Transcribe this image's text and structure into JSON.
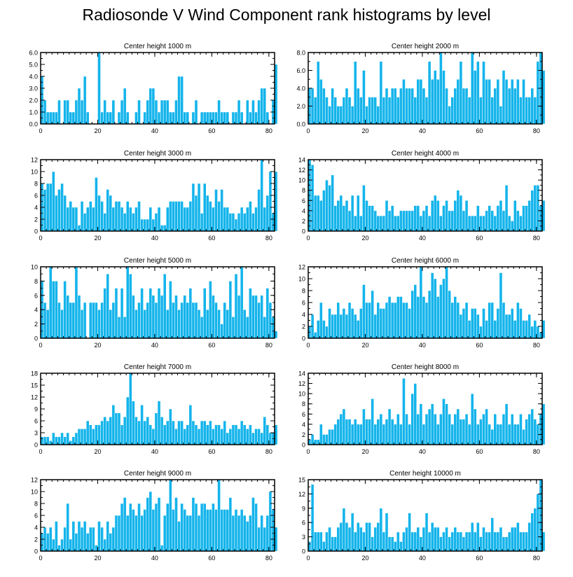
{
  "title": "Radiosonde V Wind Component rank histograms by level",
  "colors": {
    "bar": "#14b4eb",
    "bar_edge": "#ffffff",
    "axis": "#000000"
  },
  "chart_data": [
    {
      "type": "bar",
      "title": "Center height 1000 m",
      "xlim": [
        0,
        82
      ],
      "ylim": [
        0,
        6
      ],
      "xticks": [
        0,
        20,
        40,
        60,
        80
      ],
      "yticks": [
        0,
        1,
        2,
        3,
        4,
        5,
        6
      ],
      "ytick_labels": [
        "0.0",
        "1.0",
        "2.0",
        "3.0",
        "4.0",
        "5.0",
        "6.0"
      ],
      "values": [
        4,
        2,
        1,
        1,
        1,
        1,
        2,
        0,
        2,
        2,
        1,
        1,
        2,
        3,
        2,
        4,
        1,
        0,
        0,
        0,
        6,
        1,
        2,
        1,
        1,
        2,
        0,
        1,
        2,
        3,
        1,
        0,
        0,
        1,
        2,
        0,
        1,
        2,
        3,
        3,
        2,
        1,
        2,
        2,
        2,
        1,
        1,
        2,
        4,
        4,
        1,
        1,
        0,
        1,
        2,
        0,
        1,
        1,
        1,
        1,
        1,
        1,
        2,
        1,
        1,
        1,
        0,
        1,
        1,
        2,
        1,
        0,
        2,
        1,
        2,
        1,
        2,
        3,
        3,
        1,
        0,
        2,
        5
      ]
    },
    {
      "type": "bar",
      "title": "Center height 2000 m",
      "xlim": [
        0,
        82
      ],
      "ylim": [
        0,
        8
      ],
      "xticks": [
        0,
        20,
        40,
        60,
        80
      ],
      "yticks": [
        0,
        2,
        4,
        6,
        8
      ],
      "ytick_labels": [
        "0.0",
        "2.0",
        "4.0",
        "6.0",
        "8.0"
      ],
      "values": [
        4,
        4,
        3,
        7,
        5,
        4,
        3,
        2,
        4,
        3,
        2,
        2,
        3,
        4,
        3,
        2,
        7,
        4,
        3,
        6,
        2,
        3,
        3,
        3,
        2,
        7,
        3,
        4,
        3,
        4,
        4,
        3,
        4,
        5,
        4,
        4,
        4,
        3,
        5,
        5,
        4,
        3,
        7,
        5,
        6,
        5,
        8,
        6,
        4,
        2,
        3,
        4,
        5,
        7,
        4,
        4,
        3,
        8,
        6,
        7,
        3,
        7,
        5,
        5,
        3,
        4,
        5,
        2,
        6,
        5,
        4,
        5,
        4,
        5,
        3,
        5,
        3,
        3,
        4,
        3,
        7,
        8,
        6
      ]
    },
    {
      "type": "bar",
      "title": "Center height 3000 m",
      "xlim": [
        0,
        82
      ],
      "ylim": [
        0,
        12
      ],
      "xticks": [
        0,
        20,
        40,
        60,
        80
      ],
      "yticks": [
        0,
        2,
        4,
        6,
        8,
        10,
        12
      ],
      "ytick_labels": [
        "0",
        "2",
        "4",
        "6",
        "8",
        "10",
        "12"
      ],
      "values": [
        8,
        7,
        8,
        8,
        10,
        6,
        7,
        8,
        6,
        4,
        5,
        4,
        4,
        1,
        5,
        3,
        4,
        5,
        4,
        9,
        6,
        5,
        3,
        7,
        6,
        4,
        5,
        5,
        4,
        3,
        5,
        4,
        3,
        4,
        5,
        2,
        2,
        2,
        4,
        2,
        3,
        4,
        1,
        1,
        4,
        5,
        5,
        5,
        5,
        5,
        4,
        4,
        5,
        8,
        6,
        8,
        3,
        8,
        6,
        5,
        4,
        7,
        5,
        7,
        4,
        4,
        3,
        3,
        2,
        3,
        4,
        3,
        4,
        5,
        3,
        4,
        7,
        12,
        4,
        6,
        10,
        3,
        10
      ]
    },
    {
      "type": "bar",
      "title": "Center height 4000 m",
      "xlim": [
        0,
        82
      ],
      "ylim": [
        0,
        14
      ],
      "xticks": [
        0,
        20,
        40,
        60,
        80
      ],
      "yticks": [
        0,
        2,
        4,
        6,
        8,
        10,
        12,
        14
      ],
      "ytick_labels": [
        "0",
        "2",
        "4",
        "6",
        "8",
        "10",
        "12",
        "14"
      ],
      "values": [
        14,
        13,
        7,
        7,
        6,
        8,
        10,
        9,
        11,
        5,
        6,
        7,
        5,
        6,
        4,
        7,
        3,
        7,
        3,
        9,
        6,
        5,
        5,
        4,
        3,
        3,
        3,
        6,
        4,
        5,
        3,
        3,
        4,
        4,
        4,
        4,
        4,
        5,
        5,
        3,
        4,
        5,
        3,
        6,
        7,
        6,
        3,
        5,
        6,
        4,
        4,
        6,
        8,
        7,
        4,
        6,
        3,
        3,
        3,
        5,
        3,
        3,
        4,
        5,
        4,
        3,
        5,
        6,
        4,
        9,
        3,
        2,
        6,
        4,
        3,
        5,
        5,
        6,
        8,
        9,
        9,
        5,
        6
      ]
    },
    {
      "type": "bar",
      "title": "Center height 5000 m",
      "xlim": [
        0,
        82
      ],
      "ylim": [
        0,
        10
      ],
      "xticks": [
        0,
        20,
        40,
        60,
        80
      ],
      "yticks": [
        0,
        2,
        4,
        6,
        8,
        10
      ],
      "ytick_labels": [
        "0",
        "2",
        "4",
        "6",
        "8",
        "10"
      ],
      "values": [
        8,
        5,
        4,
        10,
        8,
        8,
        5,
        4,
        8,
        6,
        5,
        5,
        10,
        6,
        4,
        5,
        0,
        5,
        5,
        5,
        4,
        5,
        7,
        9,
        4,
        5,
        7,
        3,
        7,
        3,
        10,
        9,
        6,
        4,
        5,
        7,
        4,
        5,
        7,
        6,
        5,
        7,
        6,
        9,
        4,
        8,
        5,
        6,
        4,
        5,
        6,
        5,
        7,
        5,
        5,
        4,
        3,
        7,
        4,
        8,
        6,
        5,
        4,
        2,
        5,
        4,
        8,
        3,
        9,
        6,
        10,
        4,
        3,
        7,
        6,
        6,
        5,
        6,
        3,
        7,
        5,
        3,
        1
      ]
    },
    {
      "type": "bar",
      "title": "Center height 6000 m",
      "xlim": [
        0,
        82
      ],
      "ylim": [
        0,
        12
      ],
      "xticks": [
        0,
        20,
        40,
        60,
        80
      ],
      "yticks": [
        0,
        2,
        4,
        6,
        8,
        10,
        12
      ],
      "ytick_labels": [
        "0",
        "2",
        "4",
        "6",
        "8",
        "10",
        "12"
      ],
      "values": [
        2,
        4,
        1,
        3,
        6,
        3,
        2,
        5,
        4,
        4,
        6,
        4,
        5,
        4,
        6,
        5,
        4,
        3,
        5,
        9,
        6,
        6,
        8,
        4,
        6,
        5,
        5,
        6,
        7,
        6,
        6,
        7,
        7,
        6,
        6,
        5,
        8,
        9,
        7,
        12,
        7,
        6,
        8,
        11,
        10,
        7,
        9,
        10,
        12,
        8,
        6,
        7,
        6,
        4,
        5,
        6,
        3,
        5,
        5,
        4,
        2,
        5,
        3,
        6,
        6,
        3,
        5,
        11,
        6,
        4,
        4,
        5,
        3,
        6,
        5,
        3,
        3,
        4,
        2,
        3,
        2,
        1,
        3
      ]
    },
    {
      "type": "bar",
      "title": "Center height 7000 m",
      "xlim": [
        0,
        82
      ],
      "ylim": [
        0,
        18
      ],
      "xticks": [
        0,
        20,
        40,
        60,
        80
      ],
      "yticks": [
        0,
        3,
        6,
        9,
        12,
        15,
        18
      ],
      "ytick_labels": [
        "0",
        "3",
        "6",
        "9",
        "12",
        "15",
        "18"
      ],
      "values": [
        2,
        2,
        2,
        1,
        3,
        2,
        2,
        3,
        2,
        3,
        1,
        2,
        3,
        4,
        4,
        4,
        6,
        5,
        4,
        5,
        5,
        6,
        7,
        6,
        7,
        10,
        8,
        8,
        5,
        7,
        12,
        18,
        11,
        7,
        6,
        10,
        6,
        7,
        5,
        4,
        8,
        11,
        7,
        5,
        6,
        9,
        6,
        4,
        6,
        6,
        4,
        5,
        10,
        6,
        5,
        4,
        6,
        6,
        5,
        6,
        4,
        5,
        5,
        4,
        6,
        3,
        4,
        5,
        5,
        4,
        6,
        5,
        4,
        5,
        3,
        4,
        4,
        3,
        7,
        5,
        3,
        3,
        5
      ]
    },
    {
      "type": "bar",
      "title": "Center height 8000 m",
      "xlim": [
        0,
        82
      ],
      "ylim": [
        0,
        14
      ],
      "xticks": [
        0,
        20,
        40,
        60,
        80
      ],
      "yticks": [
        0,
        2,
        4,
        6,
        8,
        10,
        12,
        14
      ],
      "ytick_labels": [
        "0",
        "2",
        "4",
        "6",
        "8",
        "10",
        "12",
        "14"
      ],
      "values": [
        1,
        2,
        1,
        1,
        4,
        2,
        2,
        3,
        3,
        4,
        5,
        6,
        7,
        5,
        5,
        4,
        5,
        4,
        4,
        7,
        5,
        5,
        9,
        4,
        5,
        6,
        4,
        5,
        7,
        5,
        4,
        6,
        4,
        13,
        6,
        4,
        10,
        12,
        6,
        8,
        4,
        6,
        7,
        8,
        6,
        4,
        6,
        9,
        8,
        6,
        4,
        6,
        7,
        5,
        5,
        6,
        4,
        10,
        7,
        4,
        5,
        6,
        7,
        4,
        3,
        6,
        4,
        4,
        6,
        8,
        4,
        6,
        4,
        4,
        6,
        3,
        5,
        6,
        7,
        5,
        4,
        6,
        8
      ]
    },
    {
      "type": "bar",
      "title": "Center height 9000 m",
      "xlim": [
        0,
        82
      ],
      "ylim": [
        0,
        12
      ],
      "xticks": [
        0,
        20,
        40,
        60,
        80
      ],
      "yticks": [
        0,
        2,
        4,
        6,
        8,
        10,
        12
      ],
      "ytick_labels": [
        "0",
        "2",
        "4",
        "6",
        "8",
        "10",
        "12"
      ],
      "values": [
        3,
        4,
        3,
        4,
        2,
        5,
        1,
        2,
        4,
        8,
        2,
        5,
        3,
        5,
        4,
        5,
        3,
        4,
        4,
        1,
        5,
        4,
        2,
        5,
        3,
        4,
        6,
        6,
        8,
        9,
        6,
        8,
        7,
        6,
        8,
        6,
        7,
        9,
        10,
        7,
        8,
        9,
        1,
        6,
        8,
        12,
        7,
        9,
        5,
        8,
        7,
        6,
        6,
        9,
        8,
        6,
        8,
        8,
        7,
        7,
        8,
        7,
        12,
        7,
        7,
        7,
        9,
        6,
        7,
        6,
        7,
        6,
        5,
        6,
        9,
        8,
        4,
        6,
        4,
        6,
        10,
        7,
        4
      ]
    },
    {
      "type": "bar",
      "title": "Center height 10000 m",
      "xlim": [
        0,
        82
      ],
      "ylim": [
        0,
        15
      ],
      "xticks": [
        0,
        20,
        40,
        60,
        80
      ],
      "yticks": [
        0,
        3,
        6,
        9,
        12,
        15
      ],
      "ytick_labels": [
        "0",
        "3",
        "6",
        "9",
        "12",
        "15"
      ],
      "values": [
        2,
        14,
        4,
        4,
        4,
        2,
        4,
        5,
        3,
        3,
        5,
        6,
        9,
        6,
        5,
        8,
        4,
        6,
        5,
        4,
        6,
        6,
        3,
        5,
        6,
        9,
        4,
        8,
        3,
        3,
        2,
        4,
        2,
        4,
        5,
        8,
        4,
        4,
        5,
        3,
        5,
        8,
        4,
        6,
        5,
        5,
        3,
        4,
        5,
        3,
        4,
        5,
        4,
        4,
        3,
        4,
        4,
        6,
        4,
        6,
        3,
        5,
        4,
        4,
        7,
        4,
        4,
        5,
        3,
        3,
        4,
        5,
        5,
        6,
        4,
        4,
        4,
        6,
        8,
        9,
        12,
        15,
        4
      ]
    }
  ]
}
